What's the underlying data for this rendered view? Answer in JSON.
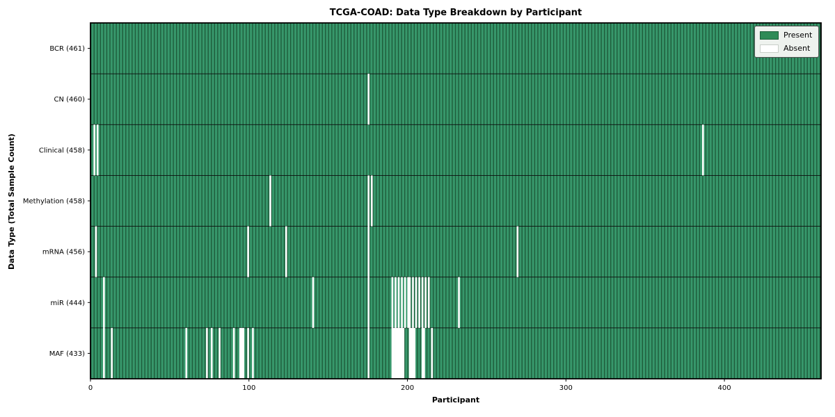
{
  "chart_data": {
    "type": "heatmap",
    "title": "TCGA-COAD: Data Type Breakdown by Participant",
    "xlabel": "Participant",
    "ylabel": "Data Type (Total Sample Count)",
    "n_participants": 461,
    "x_ticks": [
      0,
      100,
      200,
      300,
      400
    ],
    "legend": {
      "position": "upper right",
      "items": [
        {
          "label": "Present",
          "color": "#2e8b57"
        },
        {
          "label": "Absent",
          "color": "#ffffff"
        }
      ]
    },
    "colors": {
      "present_light": "#37976b",
      "present_dark": "#1d5a39",
      "absent": "#ffffff",
      "grid_line": "#0d0d0d",
      "frame": "#000000"
    },
    "rows": [
      {
        "label": "BCR (461)",
        "data_type": "BCR",
        "present_count": 461,
        "absent": []
      },
      {
        "label": "CN (460)",
        "data_type": "CN",
        "present_count": 460,
        "absent": [
          175
        ]
      },
      {
        "label": "Clinical (458)",
        "data_type": "Clinical",
        "present_count": 458,
        "absent": [
          2,
          4,
          386
        ]
      },
      {
        "label": "Methylation (458)",
        "data_type": "Methylation",
        "present_count": 458,
        "absent": [
          113,
          175,
          177
        ]
      },
      {
        "label": "mRNA (456)",
        "data_type": "mRNA",
        "present_count": 456,
        "absent": [
          3,
          99,
          123,
          175,
          269
        ]
      },
      {
        "label": "miR (444)",
        "data_type": "miR",
        "present_count": 444,
        "absent": [
          8,
          140,
          175,
          190,
          192,
          194,
          196,
          198,
          200,
          201,
          203,
          205,
          207,
          209,
          211,
          213,
          232
        ]
      },
      {
        "label": "MAF (433)",
        "data_type": "MAF",
        "present_count": 433,
        "absent": [
          8,
          13,
          60,
          73,
          76,
          81,
          90,
          94,
          95,
          96,
          99,
          102,
          175,
          190,
          191,
          192,
          193,
          194,
          195,
          196,
          197,
          201,
          202,
          203,
          204,
          209,
          210,
          215
        ]
      }
    ]
  }
}
